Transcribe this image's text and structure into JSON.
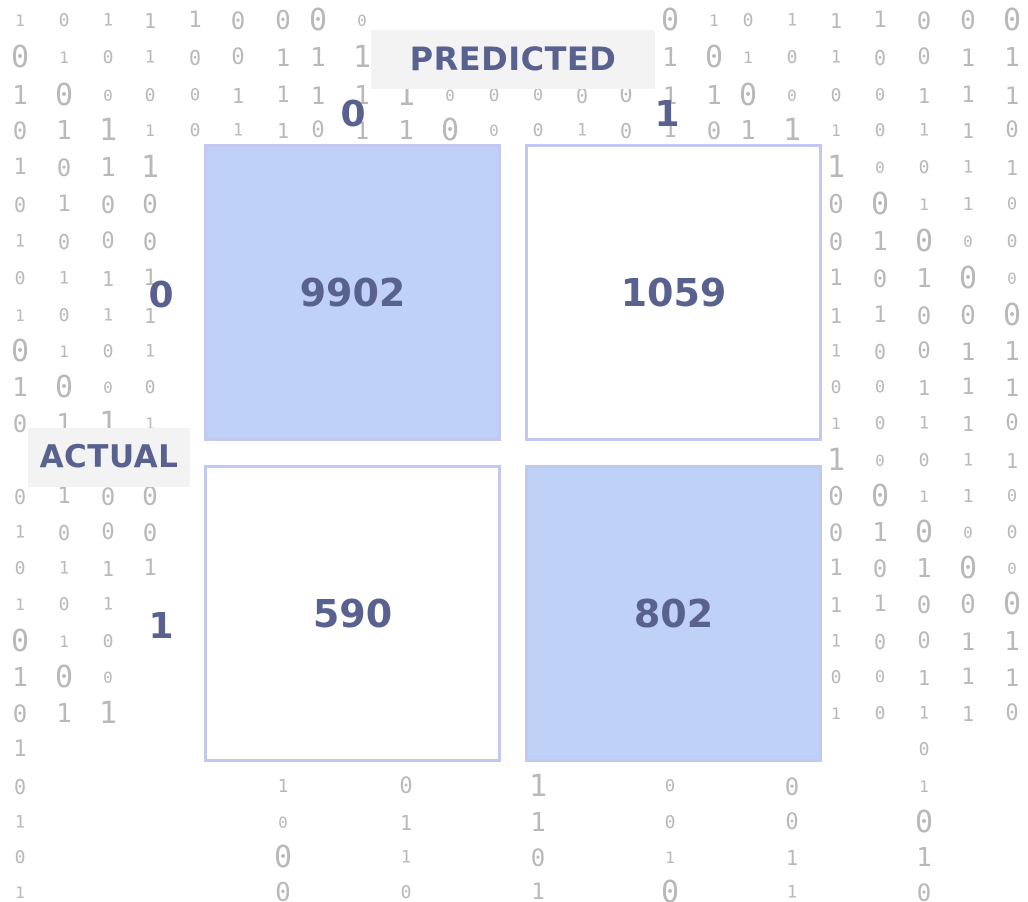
{
  "chart_data": {
    "type": "heatmap",
    "x_title": "PREDICTED",
    "y_title": "ACTUAL",
    "x_categories": [
      "0",
      "1"
    ],
    "y_categories": [
      "0",
      "1"
    ],
    "values": [
      [
        9902,
        1059
      ],
      [
        590,
        802
      ]
    ],
    "colors": {
      "diagonal_fill": "#c0d1f8",
      "offdiagonal_fill": "#ffffff",
      "cell_border": "#c2c8ef",
      "text": "#59628f",
      "background_digits": "#b9b9b9"
    }
  },
  "background": {
    "rows": [
      "1011100000111000",
      "0101001111000011",
      "1000011111000001",
      "0111011011000101",
      "1011001110111011",
      "0100011000001100",
      "1000100011001000",
      "0111010011010111"
    ]
  }
}
